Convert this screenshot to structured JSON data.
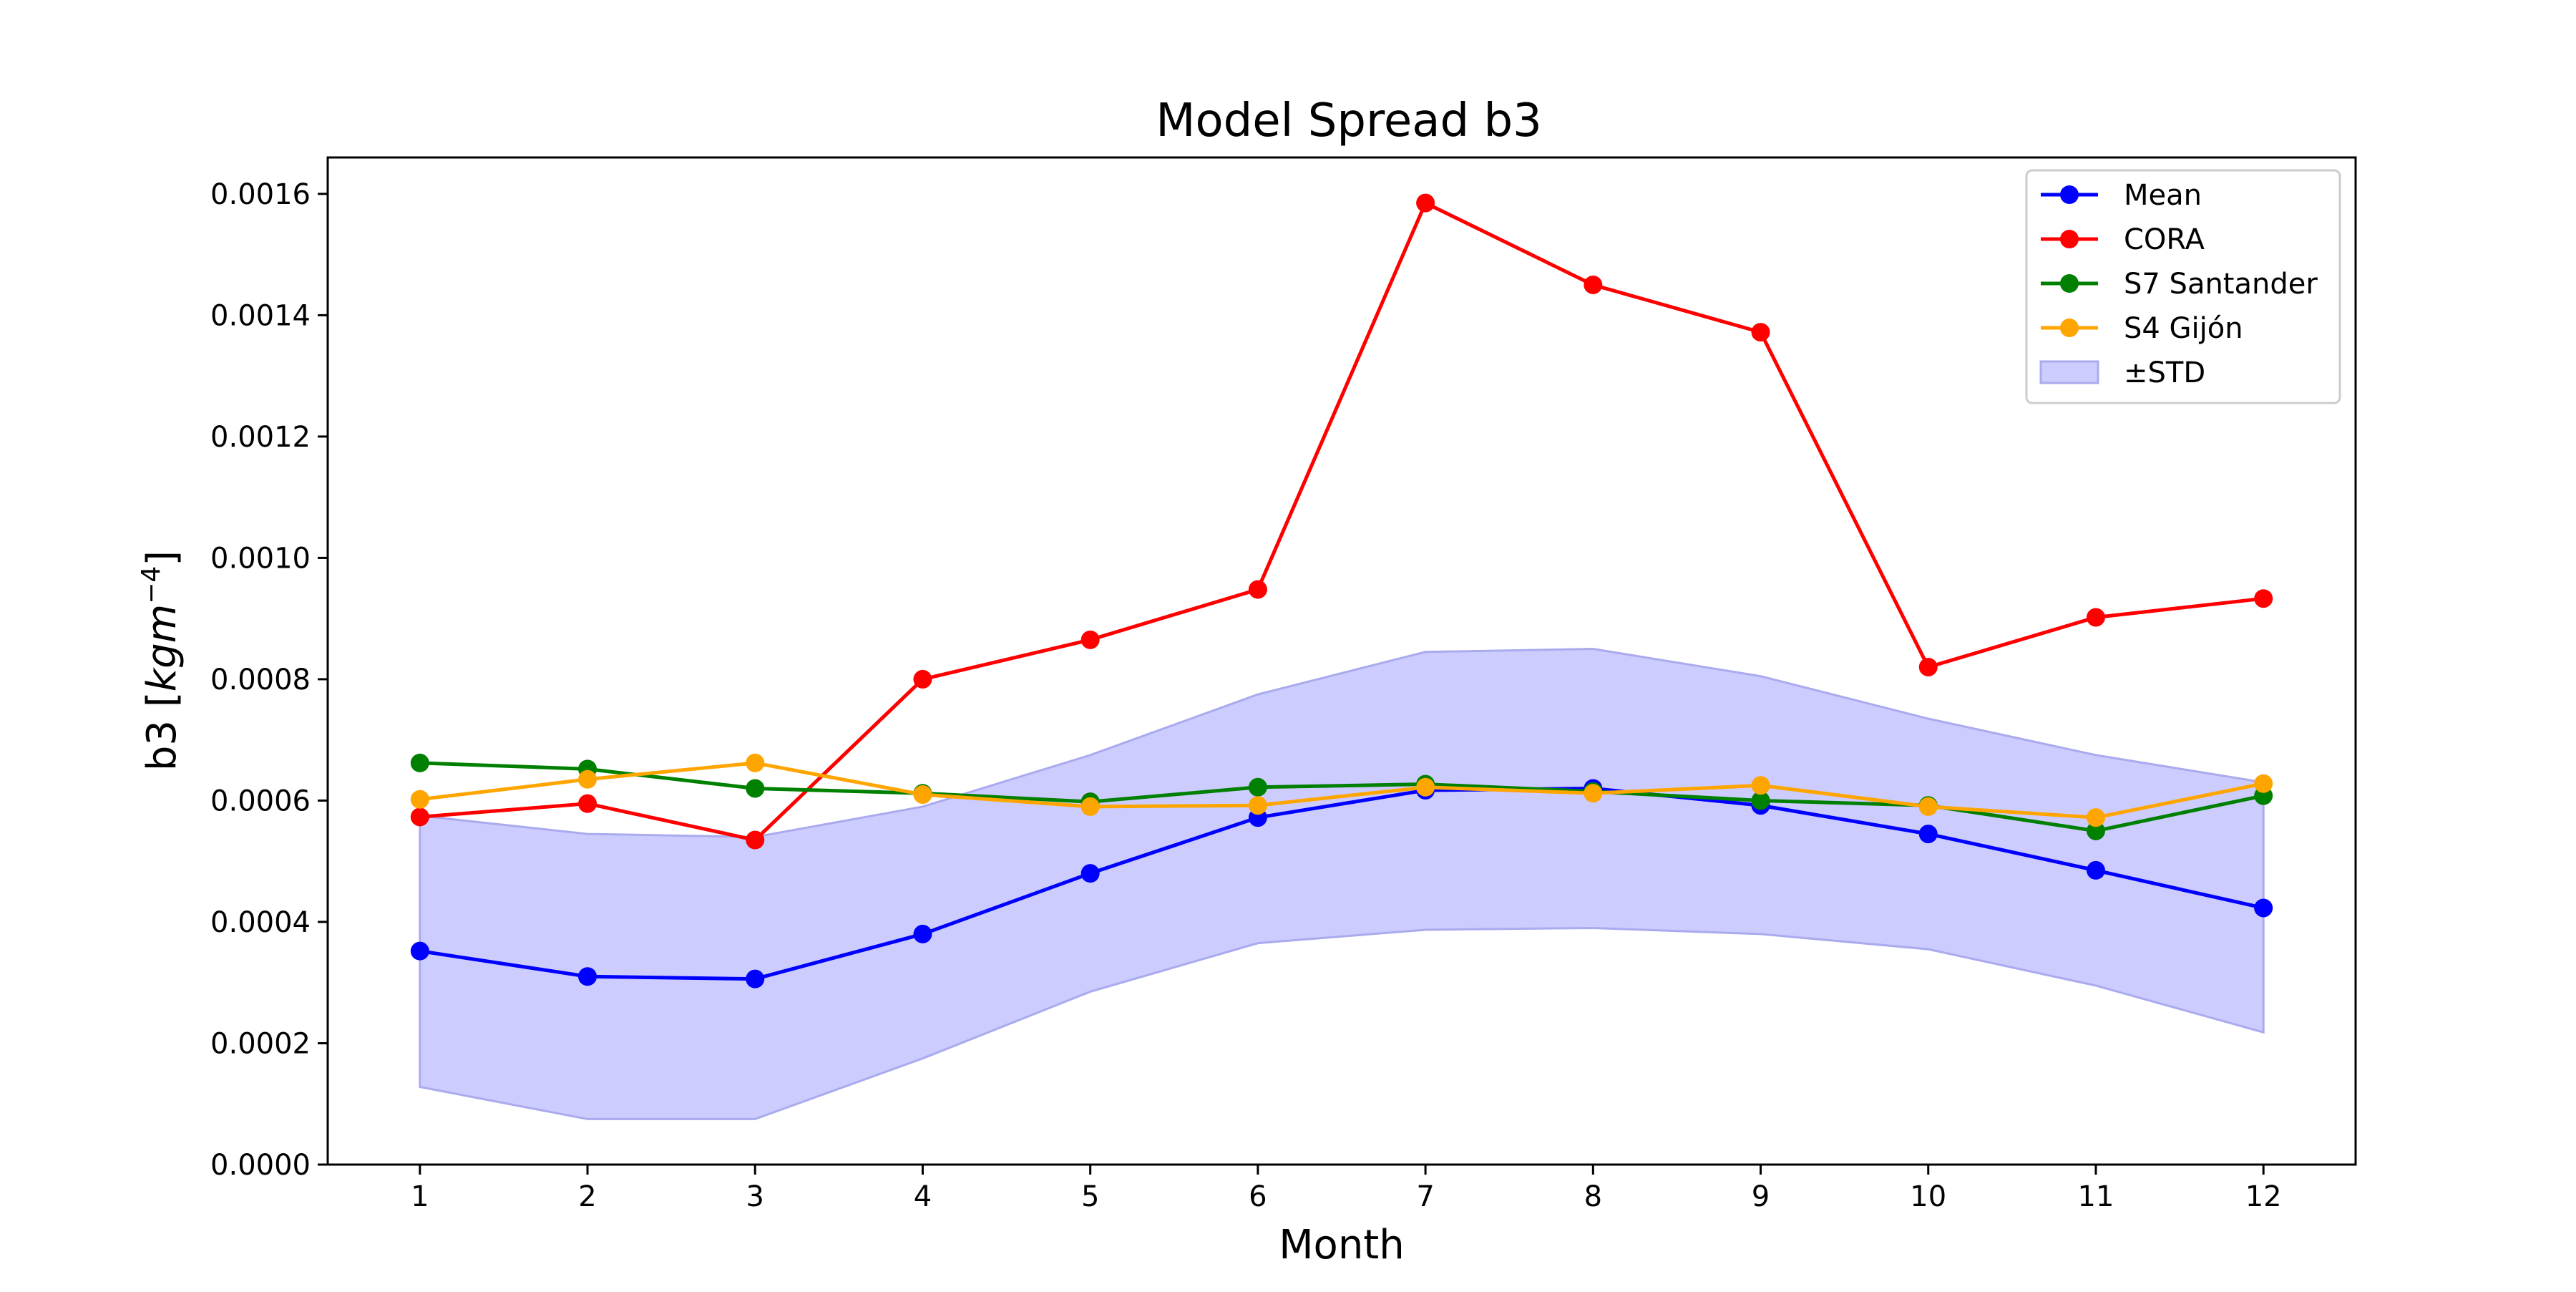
{
  "chart_data": {
    "type": "line",
    "title": "Model Spread b3",
    "xlabel": "Month",
    "ylabel_main": "b3 [",
    "ylabel_unit_base": "kgm",
    "ylabel_unit_exp": "−4",
    "ylabel_close": "]",
    "x": [
      1,
      2,
      3,
      4,
      5,
      6,
      7,
      8,
      9,
      10,
      11,
      12
    ],
    "xlim": [
      0.45,
      12.55
    ],
    "ylim": [
      0,
      0.00166
    ],
    "yticks": [
      "0.0000",
      "0.0002",
      "0.0004",
      "0.0006",
      "0.0008",
      "0.0010",
      "0.0012",
      "0.0014",
      "0.0016"
    ],
    "ytick_values": [
      0,
      0.0002,
      0.0004,
      0.0006,
      0.0008,
      0.001,
      0.0012,
      0.0014,
      0.0016
    ],
    "grid": false,
    "legend_position": "top-right",
    "band": {
      "name": "±STD",
      "color": "#ccccff",
      "edge": "#aaaaee",
      "upper": [
        0.000575,
        0.000545,
        0.00054,
        0.00059,
        0.000675,
        0.000775,
        0.000845,
        0.00085,
        0.000805,
        0.000735,
        0.000675,
        0.00063
      ],
      "lower": [
        0.000128,
        7.5e-05,
        7.5e-05,
        0.000175,
        0.000285,
        0.000365,
        0.000387,
        0.00039,
        0.00038,
        0.000355,
        0.000295,
        0.000218
      ]
    },
    "series": [
      {
        "name": "Mean",
        "color": "#0000ff",
        "values": [
          0.000352,
          0.00031,
          0.000306,
          0.00038,
          0.00048,
          0.000572,
          0.000617,
          0.00062,
          0.000592,
          0.000545,
          0.000485,
          0.000423
        ]
      },
      {
        "name": "CORA",
        "color": "#ff0000",
        "values": [
          0.000573,
          0.000595,
          0.000535,
          0.0008,
          0.000865,
          0.000948,
          0.001585,
          0.00145,
          0.001372,
          0.00082,
          0.000902,
          0.000933
        ]
      },
      {
        "name": "S7 Santander",
        "color": "#008000",
        "values": [
          0.000662,
          0.000652,
          0.00062,
          0.000612,
          0.000598,
          0.000622,
          0.000627,
          0.000615,
          0.0006,
          0.000592,
          0.00055,
          0.000608
        ]
      },
      {
        "name": "S4 Gijón",
        "color": "#ffa500",
        "values": [
          0.000602,
          0.000635,
          0.000662,
          0.00061,
          0.00059,
          0.000592,
          0.000622,
          0.000612,
          0.000625,
          0.00059,
          0.000572,
          0.000628
        ]
      }
    ]
  }
}
